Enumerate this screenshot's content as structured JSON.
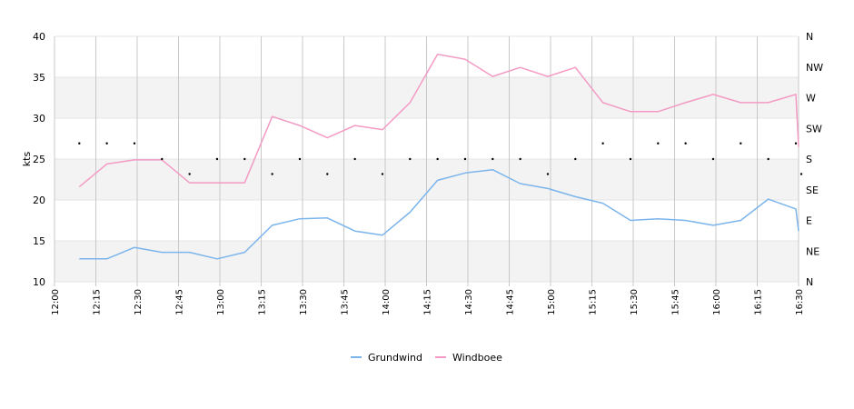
{
  "chart_data": {
    "type": "line",
    "ylabel": "kts",
    "ylim": [
      10,
      40
    ],
    "yticks": [
      "10",
      "15",
      "20",
      "25",
      "30",
      "35",
      "40"
    ],
    "x_range": [
      "12:00",
      "16:30"
    ],
    "xtick_labels": [
      "12:00",
      "12:15",
      "12:30",
      "12:45",
      "13:00",
      "13:15",
      "13:30",
      "13:45",
      "14:00",
      "14:15",
      "14:30",
      "14:45",
      "15:00",
      "15:15",
      "15:30",
      "15:45",
      "16:00",
      "16:15",
      "16:30"
    ],
    "direction_axis": {
      "range": [
        0,
        360
      ],
      "labels": [
        {
          "label": "N",
          "deg": 0
        },
        {
          "label": "NE",
          "deg": 45
        },
        {
          "label": "E",
          "deg": 90
        },
        {
          "label": "SE",
          "deg": 135
        },
        {
          "label": "S",
          "deg": 180
        },
        {
          "label": "SW",
          "deg": 225
        },
        {
          "label": "W",
          "deg": 270
        },
        {
          "label": "NW",
          "deg": 315
        },
        {
          "label": "N",
          "deg": 360
        }
      ]
    },
    "x": [
      "12:09",
      "12:19",
      "12:29",
      "12:39",
      "12:49",
      "12:59",
      "13:09",
      "13:19",
      "13:29",
      "13:39",
      "13:49",
      "13:59",
      "14:09",
      "14:19",
      "14:29",
      "14:39",
      "14:49",
      "14:59",
      "15:09",
      "15:19",
      "15:29",
      "15:39",
      "15:49",
      "15:59",
      "16:09",
      "16:19",
      "16:29",
      "16:30"
    ],
    "series": [
      {
        "name": "Grundwind",
        "color": "#7cb5ec",
        "values": [
          12.8,
          12.8,
          14.2,
          13.6,
          13.6,
          12.8,
          13.6,
          16.9,
          17.7,
          17.8,
          16.2,
          15.7,
          18.5,
          22.4,
          23.3,
          23.7,
          22.0,
          21.4,
          20.4,
          19.6,
          17.5,
          17.7,
          17.5,
          16.9,
          17.5,
          20.1,
          18.9,
          16.2
        ]
      },
      {
        "name": "Windboee",
        "color": "#f39bc4",
        "values": [
          21.6,
          24.4,
          24.9,
          24.9,
          22.1,
          22.1,
          22.1,
          30.2,
          29.1,
          27.6,
          29.1,
          28.6,
          31.9,
          37.8,
          37.2,
          35.1,
          36.2,
          35.1,
          36.2,
          31.9,
          30.8,
          30.8,
          31.9,
          32.9,
          31.9,
          31.9,
          32.9,
          26.5
        ]
      }
    ],
    "direction": {
      "name": "wind direction",
      "x": [
        "12:09",
        "12:19",
        "12:29",
        "12:39",
        "12:49",
        "12:59",
        "13:09",
        "13:19",
        "13:29",
        "13:39",
        "13:49",
        "13:59",
        "14:09",
        "14:19",
        "14:29",
        "14:39",
        "14:49",
        "14:59",
        "15:09",
        "15:19",
        "15:29",
        "15:39",
        "15:49",
        "15:59",
        "16:09",
        "16:19",
        "16:29",
        "16:31"
      ],
      "deg": [
        203,
        203,
        203,
        180,
        158,
        180,
        180,
        158,
        180,
        158,
        180,
        158,
        180,
        180,
        180,
        180,
        180,
        158,
        180,
        203,
        180,
        203,
        203,
        180,
        203,
        180,
        203,
        158
      ]
    },
    "grid": true,
    "legend": "bottom"
  }
}
